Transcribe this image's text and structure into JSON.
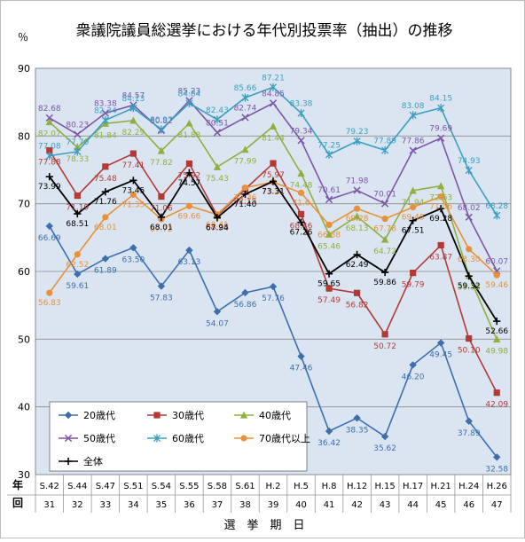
{
  "chart_data": {
    "type": "line",
    "title": "衆議院議員総選挙における年代別投票率（抽出）の推移",
    "ylabel": "％",
    "xlabel": "選　挙　期　日",
    "row_labels": [
      "年",
      "回"
    ],
    "ylim": [
      30,
      90
    ],
    "yticks": [
      30,
      40,
      50,
      60,
      70,
      80,
      90
    ],
    "grid": true,
    "legend_position": "bottom-left inside",
    "categories": [
      "S.42",
      "S.44",
      "S.47",
      "S.51",
      "S.54",
      "S.55",
      "S.58",
      "S.61",
      "H.2",
      "H.5",
      "H.8",
      "H.12",
      "H.15",
      "H.17",
      "H.21",
      "H.24",
      "H.26"
    ],
    "sessions": [
      "31",
      "32",
      "33",
      "34",
      "35",
      "36",
      "37",
      "38",
      "39",
      "40",
      "41",
      "42",
      "43",
      "44",
      "45",
      "46",
      "47"
    ],
    "series": [
      {
        "name": "20歳代",
        "color": "#3d6fad",
        "marker": "diamond",
        "values": [
          66.69,
          59.61,
          61.89,
          63.5,
          57.83,
          63.13,
          54.07,
          56.86,
          57.76,
          47.46,
          36.42,
          38.35,
          35.62,
          46.2,
          49.45,
          37.89,
          32.58
        ],
        "labels": [
          "66.69",
          "59.61",
          "61.89",
          "63.50",
          "57.83",
          "63.13",
          "54.07",
          "56.86",
          "57.76",
          "47.46",
          "36.42",
          "38.35",
          "35.62",
          "46.20",
          "49.45",
          "37.89",
          "32.58"
        ]
      },
      {
        "name": "30歳代",
        "color": "#b23a36",
        "marker": "square",
        "values": [
          77.88,
          71.19,
          75.48,
          77.41,
          71.06,
          75.92,
          68.25,
          72.15,
          75.97,
          68.46,
          57.49,
          56.82,
          50.72,
          59.79,
          63.87,
          50.1,
          42.09
        ],
        "labels": [
          "77.88",
          "71.19",
          "75.48",
          "77.41",
          "71.06",
          "75.92",
          "68.25",
          "72.15",
          "75.97",
          "68.46",
          "57.49",
          "56.82",
          "50.72",
          "59.79",
          "63.87",
          "50.10",
          "42.09"
        ]
      },
      {
        "name": "40歳代",
        "color": "#8fb040",
        "marker": "triangle",
        "values": [
          82.07,
          78.33,
          81.84,
          82.29,
          77.82,
          81.88,
          75.43,
          77.99,
          81.44,
          74.48,
          65.46,
          68.13,
          64.72,
          71.94,
          72.63,
          59.38,
          49.98
        ],
        "labels": [
          "82.07",
          "78.33",
          "81.84",
          "82.29",
          "77.82",
          "81.88",
          "75.43",
          "77.99",
          "81.44",
          "74.48",
          "65.46",
          "68.13",
          "64.72",
          "71.94",
          "72.63",
          "59.38",
          "49.98"
        ]
      },
      {
        "name": "50歳代",
        "color": "#7c57a8",
        "marker": "x",
        "values": [
          82.68,
          80.23,
          83.38,
          84.57,
          80.82,
          85.23,
          80.51,
          82.74,
          84.85,
          79.34,
          70.61,
          71.98,
          70.01,
          77.86,
          79.69,
          68.02,
          60.07
        ],
        "labels": [
          "82.68",
          "80.23",
          "83.38",
          "84.57",
          "80.82",
          "85.23",
          "80.51",
          "82.74",
          "84.85",
          "79.34",
          "70.61",
          "71.98",
          "70.01",
          "77.86",
          "79.69",
          "68.02",
          "60.07"
        ]
      },
      {
        "name": "60歳代",
        "color": "#3a9fbf",
        "marker": "star",
        "values": [
          77.08,
          77.7,
          82.34,
          84.13,
          80.97,
          84.84,
          82.43,
          85.66,
          87.21,
          83.38,
          77.25,
          79.23,
          77.89,
          83.08,
          84.15,
          74.93,
          68.28
        ],
        "labels": [
          "77.08",
          "77.70",
          "82.34",
          "84.13",
          "80.97",
          "84.84",
          "82.43",
          "85.66",
          "87.21",
          "83.38",
          "77.25",
          "79.23",
          "77.89",
          "83.08",
          "84.15",
          "74.93",
          "68.28"
        ]
      },
      {
        "name": "70歳代以上",
        "color": "#e8913a",
        "marker": "circle",
        "values": [
          56.83,
          62.52,
          68.01,
          71.35,
          67.72,
          69.66,
          68.41,
          72.36,
          73.21,
          71.61,
          66.88,
          69.28,
          67.78,
          69.48,
          71.06,
          63.3,
          59.46
        ],
        "labels": [
          "56.83",
          "62.52",
          "68.01",
          "71.35",
          "67.72",
          "69.66",
          "68.41",
          "72.36",
          "73.21",
          "71.6",
          "66.88",
          "69.28",
          "67.78",
          "69.48",
          "71.06",
          "63.30",
          "59.46"
        ]
      },
      {
        "name": "全体",
        "color": "#000000",
        "marker": "plus",
        "values": [
          73.99,
          68.51,
          71.76,
          73.45,
          68.01,
          74.57,
          67.94,
          71.4,
          73.31,
          67.26,
          59.65,
          62.49,
          59.86,
          67.51,
          69.28,
          59.32,
          52.66
        ],
        "labels": [
          "73.99",
          "68.51",
          "71.76",
          "73.45",
          "68.01",
          "74.57",
          "67.94",
          "71.40",
          "73.31",
          "67.26",
          "59.65",
          "62.49",
          "59.86",
          "67.51",
          "69.28",
          "59.32",
          "52.66"
        ]
      }
    ]
  }
}
